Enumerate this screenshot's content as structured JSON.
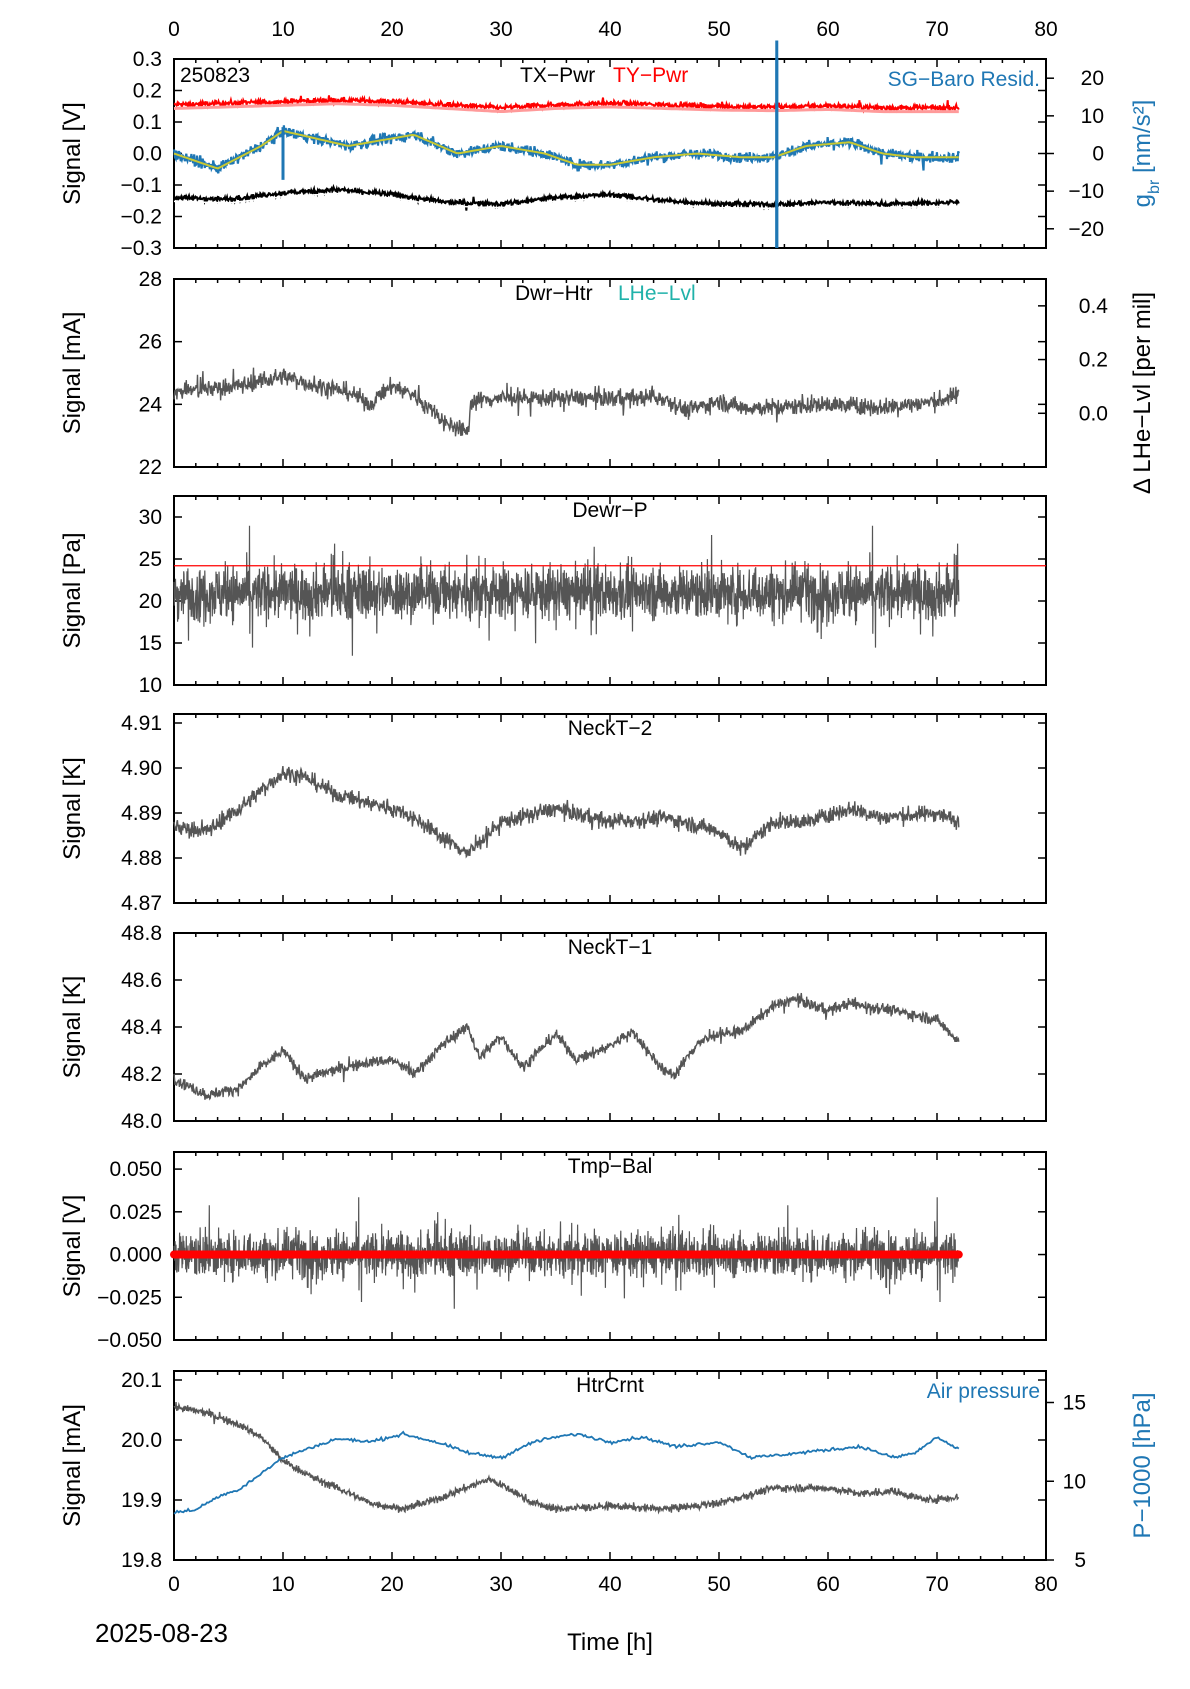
{
  "date_label": "2025-08-23",
  "chart_data": [
    {
      "type": "line",
      "title": "TX-Pwr TY-Pwr",
      "stamp": "250823",
      "xlabel": "Time [h]",
      "ylabel": "Signal [V]",
      "xlim": [
        0,
        80
      ],
      "ylim": [
        -0.3,
        0.3
      ],
      "yticks": [
        "-0.3",
        "-0.2",
        "-0.1",
        "0.0",
        "0.1",
        "0.2",
        "0.3"
      ],
      "y2label": "g_br [nm/s²]",
      "y2lim": [
        -25.1,
        25.1
      ],
      "y2ticks": [
        "-20",
        "-10",
        "0",
        "10",
        "20"
      ],
      "legend": [
        "TX-Pwr",
        "TY-Pwr",
        "SG-Baro Resid."
      ],
      "colors": {
        "TX-Pwr": "#000000",
        "TY-Pwr": "#ff0000",
        "SG-Baro Resid.": "#1f77b4"
      },
      "series": [
        {
          "name": "TY-Pwr",
          "x": [
            0,
            5,
            10,
            15,
            20,
            25,
            30,
            35,
            40,
            45,
            50,
            55,
            60,
            65,
            72
          ],
          "values": [
            0.155,
            0.16,
            0.165,
            0.17,
            0.165,
            0.155,
            0.145,
            0.155,
            0.16,
            0.155,
            0.15,
            0.148,
            0.152,
            0.145,
            0.145
          ]
        },
        {
          "name": "TX-Pwr",
          "x": [
            0,
            5,
            10,
            15,
            20,
            25,
            30,
            35,
            40,
            45,
            50,
            55,
            60,
            65,
            72
          ],
          "values": [
            -0.14,
            -0.145,
            -0.125,
            -0.115,
            -0.13,
            -0.155,
            -0.16,
            -0.14,
            -0.13,
            -0.15,
            -0.16,
            -0.162,
            -0.155,
            -0.16,
            -0.155
          ]
        },
        {
          "name": "SG-Baro Resid.",
          "axis": "right",
          "x": [
            0,
            4,
            8,
            10,
            13,
            16,
            20,
            22,
            26,
            30,
            34,
            37,
            40,
            44,
            48,
            52,
            55,
            58,
            62,
            65,
            68,
            72
          ],
          "values": [
            0,
            -4,
            2,
            6,
            4,
            2,
            4,
            5,
            0,
            2,
            0,
            -3,
            -3,
            -1,
            0,
            -1,
            -1,
            2,
            3,
            0,
            -1,
            -1
          ]
        }
      ]
    },
    {
      "type": "line",
      "title": "Dwr-Htr LHe-Lvl",
      "ylabel": "Signal [mA]",
      "xlim": [
        0,
        80
      ],
      "ylim": [
        22,
        28
      ],
      "yticks": [
        "22",
        "24",
        "26",
        "28"
      ],
      "y2label": "Δ LHe-Lvl [per mil]",
      "y2lim": [
        -0.2,
        0.5
      ],
      "y2ticks": [
        "0.0",
        "0.2",
        "0.4"
      ],
      "legend": [
        "Dwr-Htr",
        "LHe-Lvl"
      ],
      "colors": {
        "Dwr-Htr": "#555555",
        "LHe-Lvl": "#20b2aa"
      },
      "series": [
        {
          "name": "Dwr-Htr",
          "x": [
            0,
            3,
            6,
            10,
            13,
            16,
            18,
            20,
            22,
            25,
            27,
            27.2,
            30,
            35,
            40,
            45,
            47,
            50,
            52,
            55,
            60,
            65,
            70,
            72
          ],
          "values": [
            24.4,
            24.5,
            24.6,
            24.9,
            24.6,
            24.4,
            24,
            24.6,
            24.3,
            23.4,
            23.1,
            24.1,
            24.2,
            24.2,
            24.2,
            24.2,
            23.8,
            24.1,
            23.9,
            23.9,
            24,
            23.9,
            24.1,
            24.3
          ]
        }
      ]
    },
    {
      "type": "line",
      "title": "Dewr-P",
      "ylabel": "Signal [Pa]",
      "xlim": [
        0,
        80
      ],
      "ylim": [
        10,
        32.5
      ],
      "yticks": [
        "10",
        "15",
        "20",
        "25",
        "30"
      ],
      "threshold": 24.2,
      "colors": {
        "Dewr-P": "#555555",
        "threshold": "#ff0000"
      },
      "series": [
        {
          "name": "Dewr-P",
          "x": [
            0,
            72
          ],
          "values": [
            21,
            21
          ]
        }
      ]
    },
    {
      "type": "line",
      "title": "NeckT-2",
      "ylabel": "Signal [K]",
      "xlim": [
        0,
        80
      ],
      "ylim": [
        4.87,
        4.912
      ],
      "yticks": [
        "4.87",
        "4.88",
        "4.89",
        "4.90",
        "4.91"
      ],
      "colors": {
        "NeckT-2": "#555555"
      },
      "series": [
        {
          "name": "NeckT-2",
          "x": [
            0,
            3,
            6,
            10,
            12,
            15,
            20,
            22,
            25,
            27,
            30,
            35,
            40,
            45,
            50,
            52,
            55,
            58,
            62,
            65,
            70,
            72
          ],
          "values": [
            4.887,
            4.886,
            4.891,
            4.899,
            4.898,
            4.894,
            4.891,
            4.889,
            4.884,
            4.881,
            4.888,
            4.891,
            4.888,
            4.889,
            4.886,
            4.882,
            4.888,
            4.888,
            4.891,
            4.889,
            4.89,
            4.888
          ]
        }
      ]
    },
    {
      "type": "line",
      "title": "NeckT-1",
      "ylabel": "Signal [K]",
      "xlim": [
        0,
        80
      ],
      "ylim": [
        48,
        48.8
      ],
      "yticks": [
        "48.0",
        "48.2",
        "48.4",
        "48.6",
        "48.8"
      ],
      "colors": {
        "NeckT-1": "#555555"
      },
      "series": [
        {
          "name": "NeckT-1",
          "x": [
            0,
            3,
            6,
            8,
            10,
            12,
            15,
            18,
            20,
            22,
            25,
            27,
            28,
            30,
            32,
            35,
            37,
            40,
            42,
            45,
            46,
            48,
            50,
            52,
            55,
            57,
            60,
            62,
            65,
            68,
            70,
            72
          ],
          "values": [
            48.18,
            48.11,
            48.14,
            48.23,
            48.3,
            48.18,
            48.22,
            48.25,
            48.26,
            48.2,
            48.34,
            48.4,
            48.27,
            48.36,
            48.23,
            48.37,
            48.26,
            48.32,
            48.38,
            48.21,
            48.2,
            48.33,
            48.37,
            48.38,
            48.49,
            48.52,
            48.47,
            48.5,
            48.48,
            48.45,
            48.43,
            48.34
          ]
        }
      ]
    },
    {
      "type": "line",
      "title": "Tmp-Bal",
      "ylabel": "Signal [V]",
      "xlim": [
        0,
        80
      ],
      "ylim": [
        -0.05,
        0.06
      ],
      "yticks": [
        "-0.050",
        "-0.025",
        "0.000",
        "0.025",
        "0.050"
      ],
      "colors": {
        "Tmp-Bal": "#555555",
        "mean": "#ff0000"
      },
      "series": [
        {
          "name": "Tmp-Bal",
          "x": [
            0,
            72
          ],
          "values": [
            0,
            0
          ]
        },
        {
          "name": "mean",
          "x": [
            0,
            72
          ],
          "values": [
            0,
            0
          ]
        }
      ]
    },
    {
      "type": "line",
      "title": "HtrCrnt",
      "ylabel": "Signal [mA]",
      "xlim": [
        0,
        80
      ],
      "xticks": [
        "0",
        "10",
        "20",
        "30",
        "40",
        "50",
        "60",
        "70",
        "80"
      ],
      "ylim": [
        19.8,
        20.115
      ],
      "yticks": [
        "19.8",
        "19.9",
        "20.0",
        "20.1"
      ],
      "y2label": "P-1000 [hPa]",
      "y2lim": [
        5,
        17
      ],
      "y2ticks": [
        "5",
        "10",
        "15"
      ],
      "legend": [
        "HtrCrnt",
        "Air pressure"
      ],
      "colors": {
        "HtrCrnt": "#555555",
        "Air pressure": "#1f77b4"
      },
      "series": [
        {
          "name": "HtrCrnt",
          "x": [
            0,
            3,
            6,
            8,
            10,
            13,
            15,
            18,
            21,
            24,
            26,
            29,
            31,
            33,
            35,
            40,
            45,
            48,
            50,
            55,
            60,
            63,
            66,
            69,
            72
          ],
          "values": [
            20.055,
            20.045,
            20.025,
            20.005,
            19.965,
            19.935,
            19.92,
            19.895,
            19.885,
            19.9,
            19.915,
            19.935,
            19.915,
            19.895,
            19.885,
            19.89,
            19.885,
            19.89,
            19.895,
            19.92,
            19.92,
            19.91,
            19.915,
            19.9,
            19.905
          ]
        },
        {
          "name": "Air pressure",
          "axis": "right",
          "x": [
            0,
            2,
            4,
            6,
            8,
            10,
            12,
            15,
            18,
            21,
            24,
            27,
            30,
            33,
            35,
            37,
            40,
            43,
            46,
            50,
            53,
            56,
            60,
            63,
            66,
            68,
            70,
            72
          ],
          "values": [
            8,
            8.2,
            9,
            9.5,
            10.5,
            11.5,
            12,
            12.7,
            12.5,
            13,
            12.5,
            11.8,
            11.5,
            12.5,
            12.8,
            13,
            12.5,
            12.8,
            12.2,
            12.5,
            11.5,
            11.7,
            12,
            12.2,
            11.5,
            11.8,
            12.8,
            12
          ]
        }
      ]
    }
  ]
}
